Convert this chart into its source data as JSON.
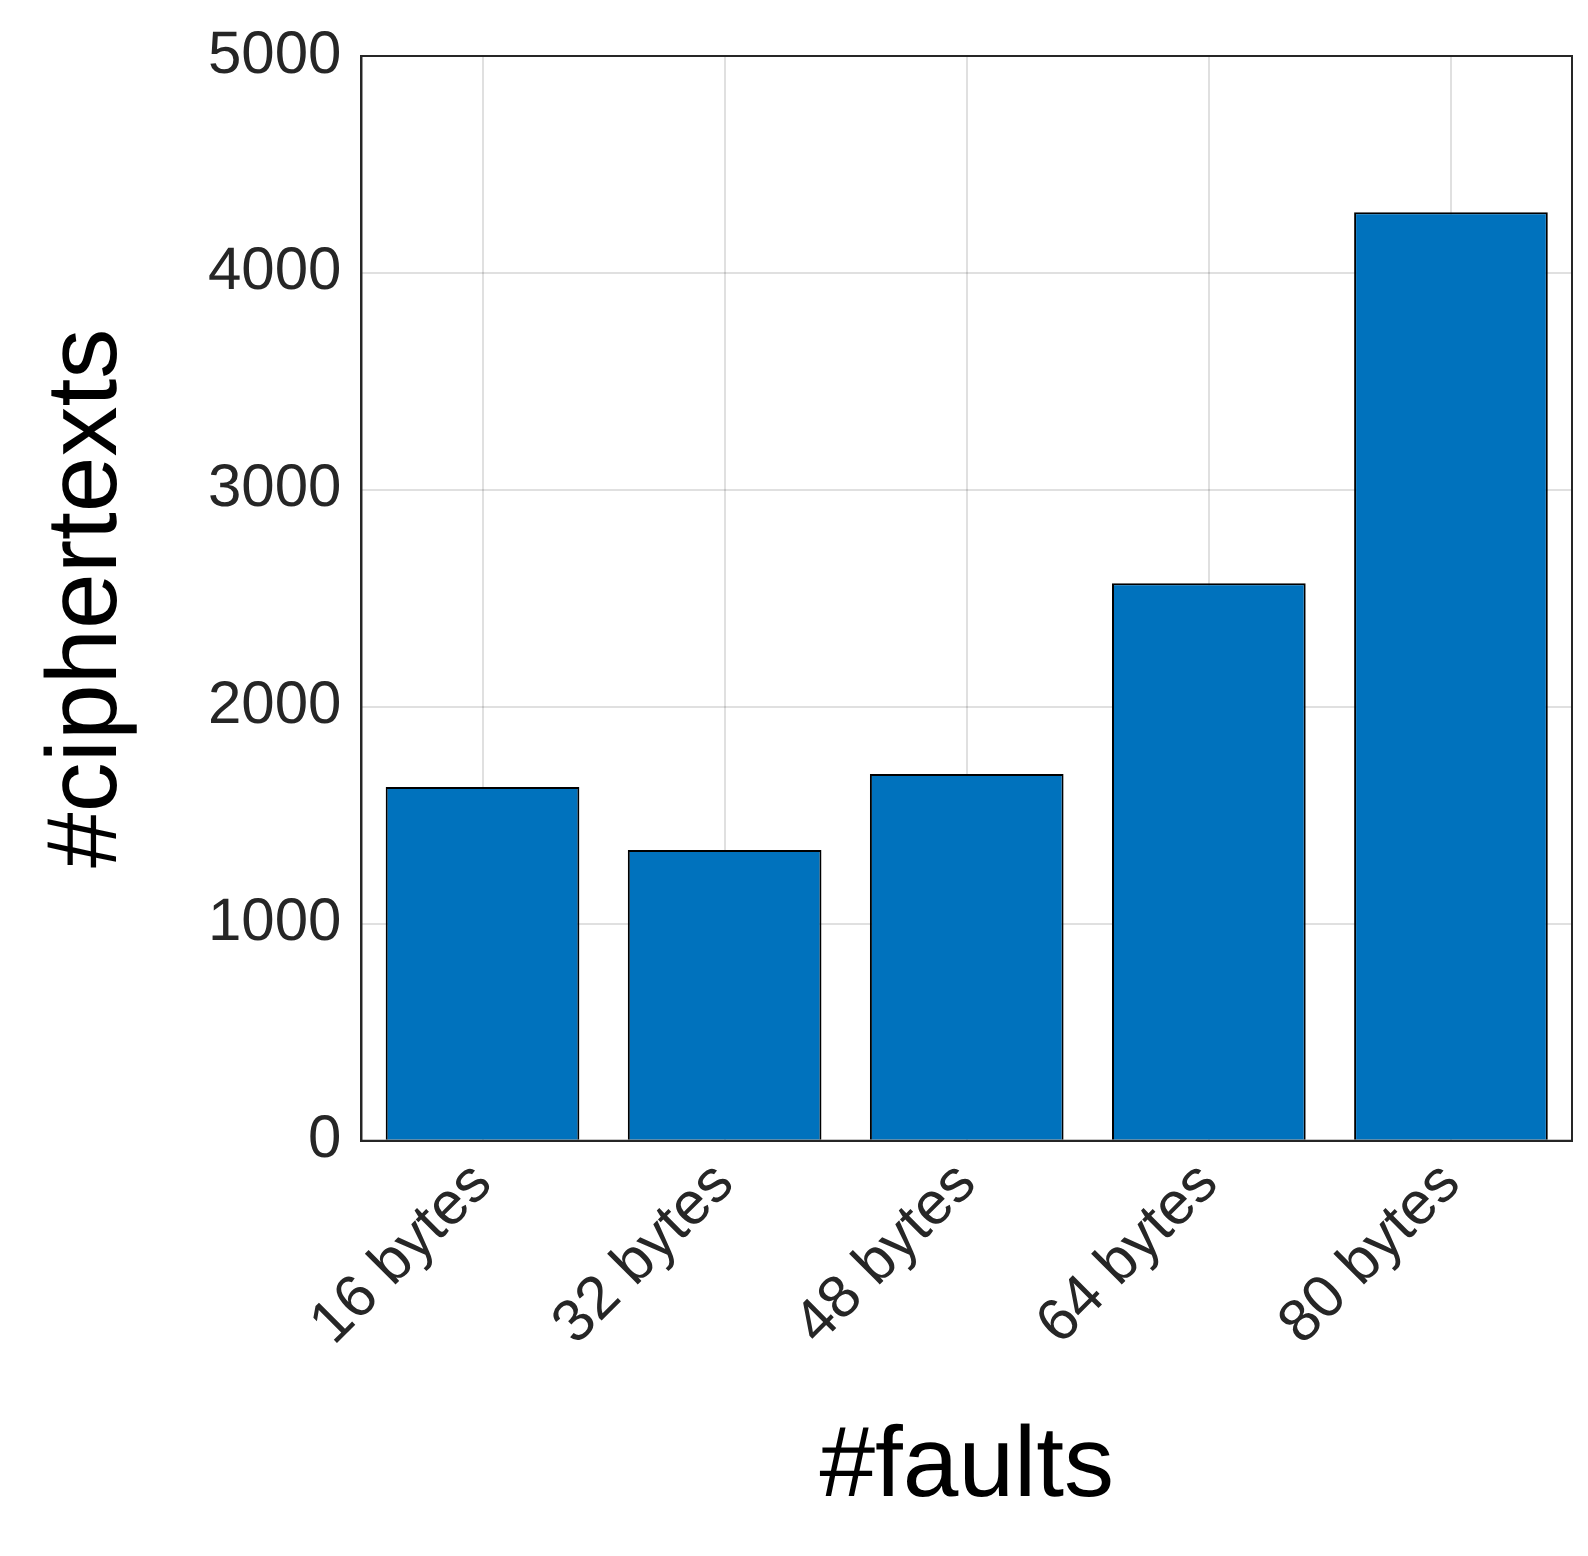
{
  "chart_data": {
    "type": "bar",
    "xlabel": "#faults",
    "ylabel": "#ciphertexts",
    "categories": [
      "16 bytes",
      "32 bytes",
      "48 bytes",
      "64 bytes",
      "80 bytes"
    ],
    "values": [
      1630,
      1340,
      1690,
      2570,
      4280
    ],
    "color": "#0072bd",
    "ylim": [
      0,
      5000
    ],
    "yticks": [
      0,
      1000,
      2000,
      3000,
      4000,
      5000
    ],
    "grid": true,
    "legend": false
  }
}
